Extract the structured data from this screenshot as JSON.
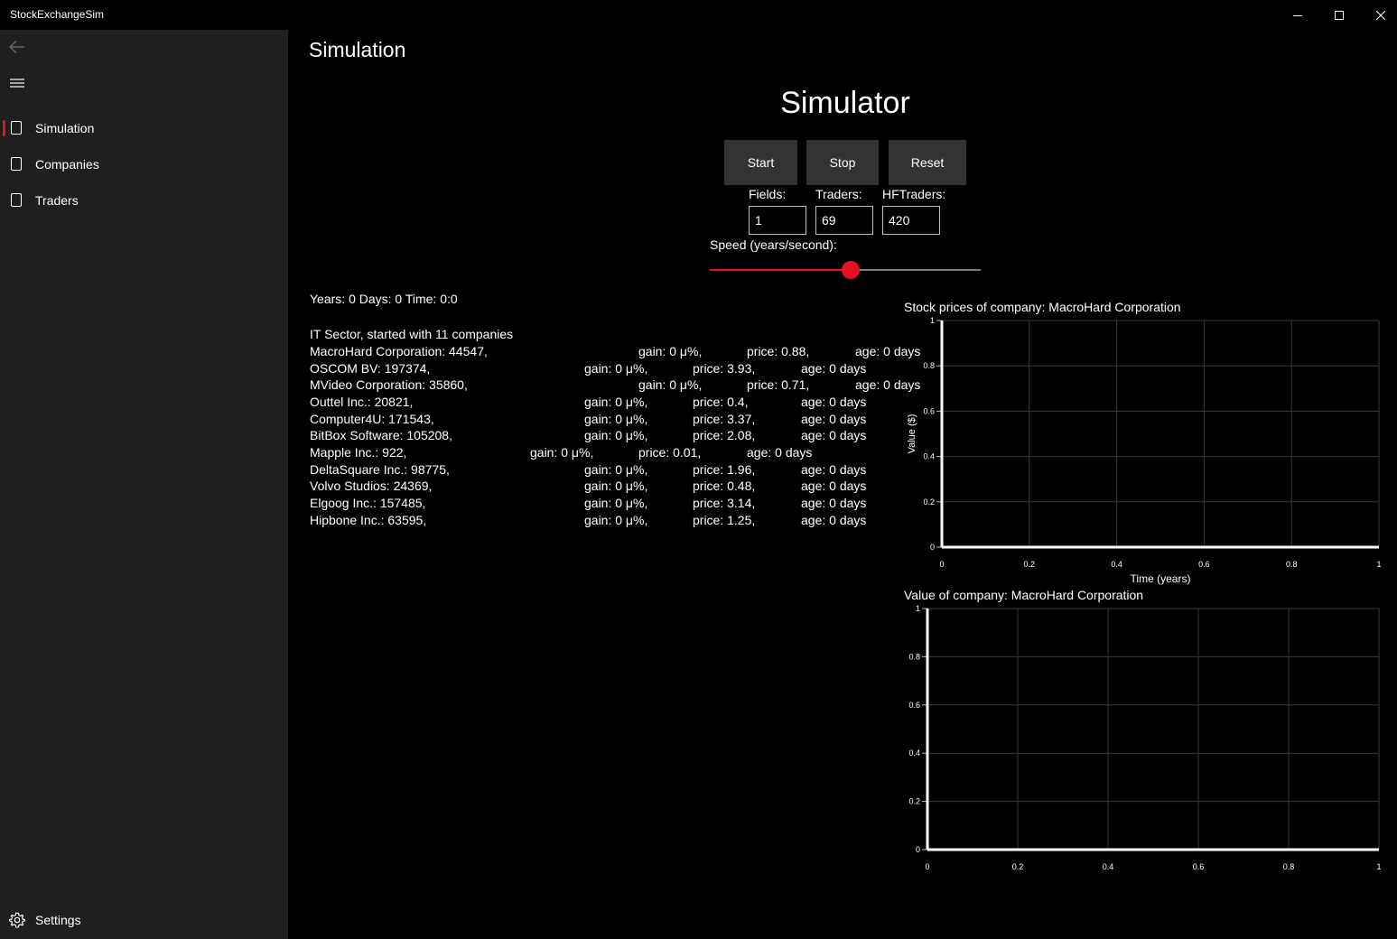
{
  "window": {
    "title": "StockExchangeSim",
    "minimize_icon": "minimize-icon",
    "maximize_icon": "maximize-icon",
    "close_icon": "close-icon"
  },
  "nav": {
    "back_icon": "back-arrow-icon",
    "menu_icon": "hamburger-icon",
    "items": [
      {
        "label": "Simulation",
        "selected": true,
        "icon": "page-icon"
      },
      {
        "label": "Companies",
        "selected": false,
        "icon": "page-icon"
      },
      {
        "label": "Traders",
        "selected": false,
        "icon": "page-icon"
      }
    ],
    "settings_label": "Settings",
    "accent": "#e81123"
  },
  "page": {
    "header": "Simulation",
    "title": "Simulator"
  },
  "controls": {
    "start_label": "Start",
    "stop_label": "Stop",
    "reset_label": "Reset",
    "fields_label": "Fields:",
    "fields_value": "1",
    "traders_label": "Traders:",
    "traders_value": "69",
    "hftraders_label": "HFTraders:",
    "hftraders_value": "420",
    "speed_label": "Speed (years/second):",
    "speed_fraction": 0.52
  },
  "status": "Years: 0 Days: 0 Time: 0:0",
  "sector": "IT Sector, started with 11 companies",
  "companies": [
    {
      "name": "MacroHard Corporation: 44547,",
      "gain": "gain: 0 μ%,",
      "price": "price: 0.88,",
      "age": "age: 0 days"
    },
    {
      "name": "OSCOM BV: 197374,",
      "gain": "gain: 0 μ%,",
      "price": "price: 3.93,",
      "age": "age: 0 days"
    },
    {
      "name": "MVideo Corporation: 35860,",
      "gain": "gain: 0 μ%,",
      "price": "price: 0.71,",
      "age": "age: 0 days"
    },
    {
      "name": "Outtel Inc.: 20821,",
      "gain": "gain: 0 μ%,",
      "price": "price: 0.4,",
      "age": "age: 0 days"
    },
    {
      "name": "Computer4U: 171543,",
      "gain": "gain: 0 μ%,",
      "price": "price: 3.37,",
      "age": "age: 0 days"
    },
    {
      "name": "BitBox Software: 105208,",
      "gain": "gain: 0 μ%,",
      "price": "price: 2.08,",
      "age": "age: 0 days"
    },
    {
      "name": "Mapple Inc.: 922,",
      "gain": "gain: 0 μ%,",
      "price": "price: 0.01,",
      "age": "age: 0 days"
    },
    {
      "name": "DeltaSquare Inc.: 98775,",
      "gain": "gain: 0 μ%,",
      "price": "price: 1.96,",
      "age": "age: 0 days"
    },
    {
      "name": "Volvo Studios: 24369,",
      "gain": "gain: 0 μ%,",
      "price": "price: 0.48,",
      "age": "age: 0 days"
    },
    {
      "name": "Elgoog Inc.: 157485,",
      "gain": "gain: 0 μ%,",
      "price": "price: 3.14,",
      "age": "age: 0 days"
    },
    {
      "name": "Hipbone Inc.: 63595,",
      "gain": "gain: 0 μ%,",
      "price": "price: 1.25,",
      "age": "age: 0 days"
    }
  ],
  "chart_data": [
    {
      "type": "line",
      "title": "Stock prices of company: MacroHard Corporation",
      "xlabel": "Time (years)",
      "ylabel": "Value ($)",
      "xlim": [
        0,
        1
      ],
      "ylim": [
        0,
        1
      ],
      "x_ticks": [
        "0",
        "0.2",
        "0.4",
        "0.6",
        "0.8",
        "1"
      ],
      "y_ticks": [
        "0",
        "0.2",
        "0.4",
        "0.6",
        "0.8",
        "1"
      ],
      "grid": true,
      "series": []
    },
    {
      "type": "line",
      "title": "Value of company: MacroHard Corporation",
      "xlabel": "",
      "ylabel": "",
      "xlim": [
        0,
        1
      ],
      "ylim": [
        0,
        1
      ],
      "x_ticks": [
        "0",
        "0.2",
        "0.4",
        "0.6",
        "0.8",
        "1"
      ],
      "y_ticks": [
        "0",
        "0.2",
        "0.4",
        "0.6",
        "0.8",
        "1"
      ],
      "grid": true,
      "series": []
    }
  ]
}
